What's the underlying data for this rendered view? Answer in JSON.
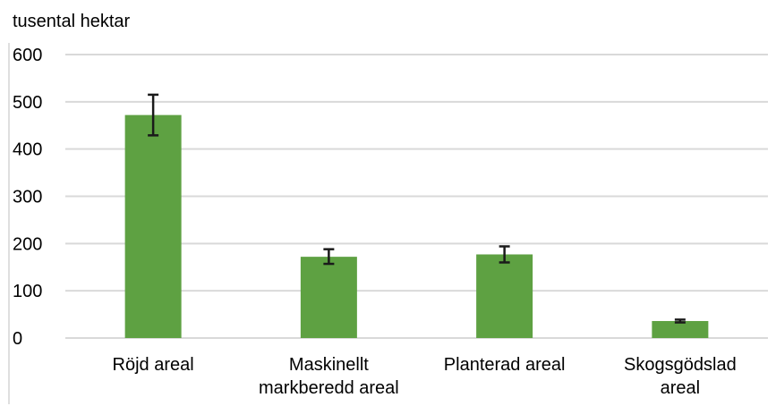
{
  "chart_data": {
    "type": "bar",
    "ylabel": "tusental hektar",
    "xlabel": "",
    "categories": [
      [
        "Röjd areal"
      ],
      [
        "Maskinellt",
        "markberedd areal"
      ],
      [
        "Planterad areal"
      ],
      [
        "Skogsgödslad",
        "areal"
      ]
    ],
    "values": [
      472,
      172,
      177,
      36
    ],
    "error_low": [
      429,
      157,
      160,
      33
    ],
    "error_high": [
      515,
      188,
      194,
      39
    ],
    "ylim": [
      0,
      600
    ],
    "yticks": [
      0,
      100,
      200,
      300,
      400,
      500,
      600
    ],
    "grid": true,
    "legend": "none",
    "colors": {
      "bar": "#5ea142",
      "grid": "#d9d9d9",
      "error": "#1a1a1a",
      "frame": "#bfbfbf"
    }
  }
}
